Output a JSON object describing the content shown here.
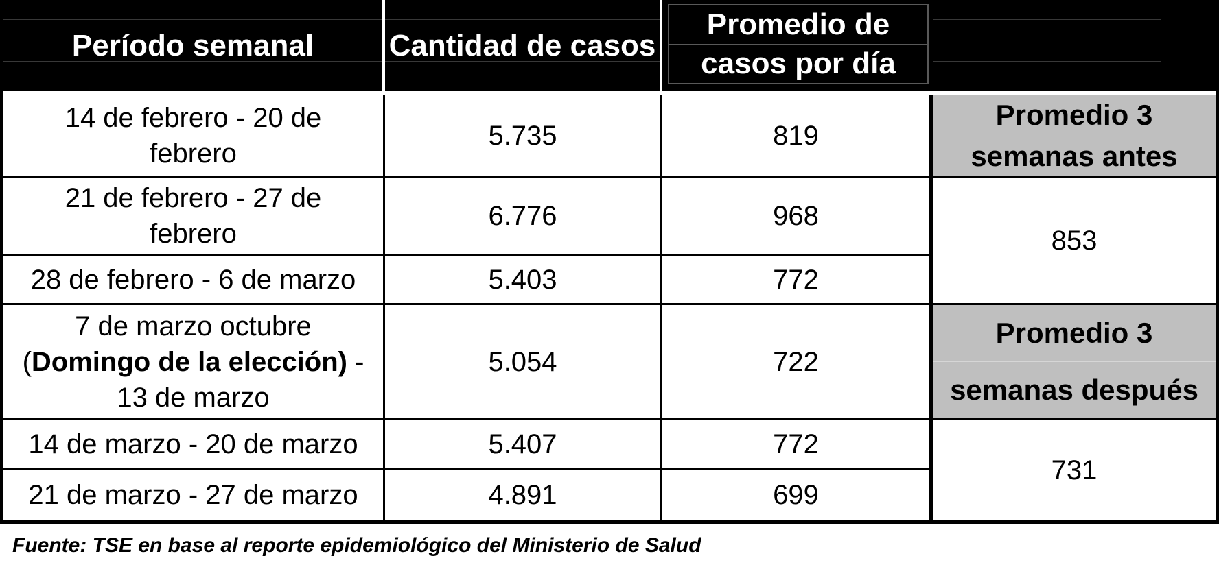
{
  "table": {
    "headers": {
      "period": "Período semanal",
      "cases": "Cantidad de casos",
      "avg_line1": "Promedio de",
      "avg_line2": "casos por día"
    },
    "rows": [
      {
        "period": "14 de febrero - 20 de febrero",
        "cases": "5.735",
        "avg_per_day": "819"
      },
      {
        "period": "21 de febrero - 27 de febrero",
        "cases": "6.776",
        "avg_per_day": "968"
      },
      {
        "period": "28 de febrero - 6 de marzo",
        "cases": "5.403",
        "avg_per_day": "772"
      },
      {
        "period_line1": "7 de marzo octubre",
        "period_line2_prefix": "(",
        "period_line2_bold": "Domingo de la elección)",
        "period_line2_suffix": " -",
        "period_line3": "13 de marzo",
        "cases": "5.054",
        "avg_per_day": "722"
      },
      {
        "period": "14 de marzo - 20 de marzo",
        "cases": "5.407",
        "avg_per_day": "772"
      },
      {
        "period": "21 de marzo - 27 de marzo",
        "cases": "4.891",
        "avg_per_day": "699"
      }
    ],
    "summary": {
      "before": {
        "label_line1": "Promedio 3",
        "label_line2": "semanas antes",
        "value": "853"
      },
      "after": {
        "label_line1": "Promedio 3",
        "label_line2": "semanas después",
        "value": "731"
      }
    }
  },
  "footer": {
    "source": "Fuente: TSE en base al reporte epidemiológico del Ministerio de Salud"
  },
  "colors": {
    "header_bg": "#000000",
    "header_text": "#ffffff",
    "summary_label_bg": "#bfbfbf",
    "border": "#000000"
  },
  "chart_data": {
    "type": "table",
    "title": "",
    "columns": [
      "Período semanal",
      "Cantidad de casos",
      "Promedio de casos por día"
    ],
    "rows": [
      [
        "14 de febrero - 20 de febrero",
        5735,
        819
      ],
      [
        "21 de febrero - 27 de febrero",
        6776,
        968
      ],
      [
        "28 de febrero - 6 de marzo",
        5403,
        772
      ],
      [
        "7 de marzo octubre (Domingo de la elección) - 13 de marzo",
        5054,
        722
      ],
      [
        "14 de marzo - 20 de marzo",
        5407,
        772
      ],
      [
        "21 de marzo - 27 de marzo",
        4891,
        699
      ]
    ],
    "annotations": [
      {
        "label": "Promedio 3 semanas antes",
        "value": 853,
        "applies_to_rows": [
          0,
          1,
          2
        ]
      },
      {
        "label": "Promedio 3 semanas después",
        "value": 731,
        "applies_to_rows": [
          3,
          4,
          5
        ]
      }
    ],
    "source": "Fuente: TSE en base al reporte epidemiológico del Ministerio de Salud"
  }
}
